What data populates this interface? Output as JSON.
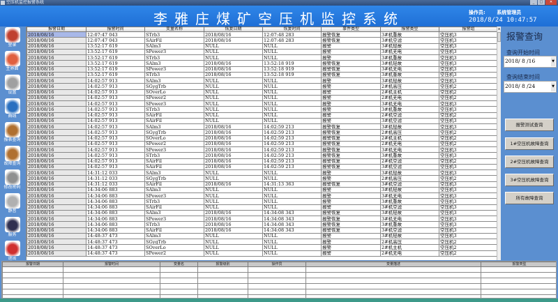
{
  "window": {
    "title": "空压机监控报警系统"
  },
  "header": {
    "title": "李雅庄煤矿空压机监控系统",
    "operator_label": "操作员:",
    "operator_name": "系统管理员",
    "datetime": "2018/8/24 10:47:57"
  },
  "sidebar": {
    "items": [
      {
        "label": "登录",
        "icon": "users-icon",
        "color": "#c04030"
      },
      {
        "label": "主界面",
        "icon": "home-icon",
        "color": "#e06040"
      },
      {
        "label": "设置",
        "icon": "gear-icon",
        "color": "#a0a0a0"
      },
      {
        "label": "曲线",
        "icon": "chart-line-icon",
        "color": "#2a70c0"
      },
      {
        "label": "报表查询",
        "icon": "archive-box-icon",
        "color": "#b07030"
      },
      {
        "label": "故障查询",
        "icon": "archive-box-icon",
        "color": "#b07030"
      },
      {
        "label": "修改密码",
        "icon": "keys-icon",
        "color": "#909090"
      },
      {
        "label": "静音",
        "icon": "speaker-mute-icon",
        "color": "#b0b0b0"
      },
      {
        "label": "服务",
        "icon": "service-icon",
        "color": "#303050"
      },
      {
        "label": "退出",
        "icon": "power-icon",
        "color": "#d03030"
      }
    ]
  },
  "table": {
    "columns": [
      "报警日期",
      "报警时间",
      "变量名称",
      "恢复日期",
      "恢复时间",
      "事件类型",
      "报警类型",
      "报警组"
    ],
    "rows": [
      [
        "2018/08/16",
        "12:07:47  043",
        "STrb3",
        "2018/08/16",
        "12:07:48  283",
        "报警恢复",
        "3#机重故",
        "空压机3"
      ],
      [
        "2018/08/16",
        "12:07:47  043",
        "SAirFil",
        "2018/08/16",
        "12:07:48  283",
        "报警恢复",
        "3#机空滤",
        "空压机3"
      ],
      [
        "2018/08/16",
        "13:52:17  619",
        "SAlm3",
        "NULL",
        "NULL",
        "报警",
        "3#机轻故",
        "空压机3"
      ],
      [
        "2018/08/16",
        "13:52:17  619",
        "SPower3",
        "NULL",
        "NULL",
        "报警",
        "3#机无电",
        "空压机3"
      ],
      [
        "2018/08/16",
        "13:52:17  619",
        "STrb3",
        "NULL",
        "NULL",
        "报警",
        "3#机重故",
        "空压机3"
      ],
      [
        "2018/08/16",
        "13:52:17  619",
        "SAlm3",
        "2018/08/16",
        "13:52:18  919",
        "报警恢复",
        "3#机轻故",
        "空压机3"
      ],
      [
        "2018/08/16",
        "13:52:17  619",
        "SPower3",
        "2018/08/16",
        "13:52:18  919",
        "报警恢复",
        "3#机无电",
        "空压机3"
      ],
      [
        "2018/08/16",
        "13:52:17  619",
        "STrb3",
        "2018/08/16",
        "13:52:18  919",
        "报警恢复",
        "3#机重故",
        "空压机3"
      ],
      [
        "2018/08/16",
        "14:02:57  913",
        "SAlm3",
        "NULL",
        "NULL",
        "报警",
        "3#机轻故",
        "空压机3"
      ],
      [
        "2018/08/16",
        "14:02:57  913",
        "SGygTrb",
        "NULL",
        "NULL",
        "报警",
        "2#机高压",
        "空压机2"
      ],
      [
        "2018/08/16",
        "14:02:57  913",
        "SOverLo",
        "NULL",
        "NULL",
        "报警",
        "2#机主机",
        "空压机2"
      ],
      [
        "2018/08/16",
        "14:02:57  913",
        "SPower2",
        "NULL",
        "NULL",
        "报警",
        "2#机无电",
        "空压机2"
      ],
      [
        "2018/08/16",
        "14:02:57  913",
        "SPower3",
        "NULL",
        "NULL",
        "报警",
        "3#机无电",
        "空压机3"
      ],
      [
        "2018/08/16",
        "14:02:57  913",
        "STrb3",
        "NULL",
        "NULL",
        "报警",
        "3#机重故",
        "空压机3"
      ],
      [
        "2018/08/16",
        "14:02:57  913",
        "SAirFil",
        "NULL",
        "NULL",
        "报警",
        "2#机空滤",
        "空压机2"
      ],
      [
        "2018/08/16",
        "14:02:57  913",
        "SAirFil",
        "NULL",
        "NULL",
        "报警",
        "3#机空滤",
        "空压机3"
      ],
      [
        "2018/08/16",
        "14:02:57  913",
        "SAlm3",
        "2018/08/16",
        "14:02:59  213",
        "报警恢复",
        "3#机轻故",
        "空压机3"
      ],
      [
        "2018/08/16",
        "14:02:57  913",
        "SGygTrb",
        "2018/08/16",
        "14:02:59  213",
        "报警恢复",
        "2#机高压",
        "空压机2"
      ],
      [
        "2018/08/16",
        "14:02:57  913",
        "SOverLo",
        "2018/08/16",
        "14:02:59  213",
        "报警恢复",
        "2#机主机",
        "空压机2"
      ],
      [
        "2018/08/16",
        "14:02:57  913",
        "SPower2",
        "2018/08/16",
        "14:02:59  213",
        "报警恢复",
        "2#机无电",
        "空压机2"
      ],
      [
        "2018/08/16",
        "14:02:57  913",
        "SPower3",
        "2018/08/16",
        "14:02:59  213",
        "报警恢复",
        "3#机无电",
        "空压机3"
      ],
      [
        "2018/08/16",
        "14:02:57  913",
        "STrb3",
        "2018/08/16",
        "14:02:59  213",
        "报警恢复",
        "3#机重故",
        "空压机3"
      ],
      [
        "2018/08/16",
        "14:02:57  913",
        "SAirFil",
        "2018/08/16",
        "14:02:59  213",
        "报警恢复",
        "2#机空滤",
        "空压机2"
      ],
      [
        "2018/08/16",
        "14:02:57  913",
        "SAirFil",
        "2018/08/16",
        "14:02:59  213",
        "报警恢复",
        "3#机空滤",
        "空压机3"
      ],
      [
        "2018/08/16",
        "14:31:12  033",
        "SAlm3",
        "NULL",
        "NULL",
        "报警",
        "3#机轻故",
        "空压机3"
      ],
      [
        "2018/08/16",
        "14:31:12  033",
        "SGygTrb",
        "NULL",
        "NULL",
        "报警",
        "2#机高压",
        "空压机2"
      ],
      [
        "2018/08/16",
        "14:31:12  033",
        "SAirFil",
        "2018/08/16",
        "14:31:13  363",
        "报警恢复",
        "3#机空滤",
        "空压机3"
      ],
      [
        "2018/08/16",
        "14:34:06  883",
        "SAlm3",
        "NULL",
        "NULL",
        "报警",
        "3#机轻故",
        "空压机3"
      ],
      [
        "2018/08/16",
        "14:34:06  883",
        "SPower3",
        "NULL",
        "NULL",
        "报警",
        "3#机无电",
        "空压机3"
      ],
      [
        "2018/08/16",
        "14:34:06  883",
        "STrb3",
        "NULL",
        "NULL",
        "报警",
        "3#机重故",
        "空压机3"
      ],
      [
        "2018/08/16",
        "14:34:06  883",
        "SAirFil",
        "NULL",
        "NULL",
        "报警",
        "3#机空滤",
        "空压机3"
      ],
      [
        "2018/08/16",
        "14:34:06  883",
        "SAlm3",
        "2018/08/16",
        "14:34:08  343",
        "报警恢复",
        "3#机轻故",
        "空压机3"
      ],
      [
        "2018/08/16",
        "14:34:06  883",
        "SPower3",
        "2018/08/16",
        "14:34:08  343",
        "报警恢复",
        "3#机无电",
        "空压机3"
      ],
      [
        "2018/08/16",
        "14:34:06  883",
        "STrb3",
        "2018/08/16",
        "14:34:08  343",
        "报警恢复",
        "3#机重故",
        "空压机3"
      ],
      [
        "2018/08/16",
        "14:34:06  883",
        "SAirFil",
        "2018/08/16",
        "14:34:08  343",
        "报警恢复",
        "3#机空滤",
        "空压机3"
      ],
      [
        "2018/08/16",
        "14:48:37  473",
        "SAlm3",
        "NULL",
        "NULL",
        "报警",
        "3#机轻故",
        "空压机3"
      ],
      [
        "2018/08/16",
        "14:48:37  473",
        "SGygTrb",
        "NULL",
        "NULL",
        "报警",
        "2#机高压",
        "空压机2"
      ],
      [
        "2018/08/16",
        "14:48:37  473",
        "SOverLo",
        "NULL",
        "NULL",
        "报警",
        "2#机主机",
        "空压机2"
      ],
      [
        "2018/08/16",
        "14:48:37  473",
        "SPower2",
        "NULL",
        "NULL",
        "报警",
        "2#机无电",
        "空压机2"
      ]
    ]
  },
  "query_panel": {
    "title": "报警查询",
    "start_label": "查询开始时间",
    "start_value": "2018/ 8 /16",
    "end_label": "查询结束时间",
    "end_value": "2018/ 8 /24",
    "buttons": [
      "报警测试查询",
      "1#空压机故障查询",
      "2#空压机故障查询",
      "3#空压机故障查询",
      "所有故障查询"
    ]
  },
  "bottom_table": {
    "columns": [
      "报警日期",
      "报警时间",
      "变量名",
      "报警级别",
      "操作员",
      "变量描述",
      "报警类型"
    ]
  }
}
